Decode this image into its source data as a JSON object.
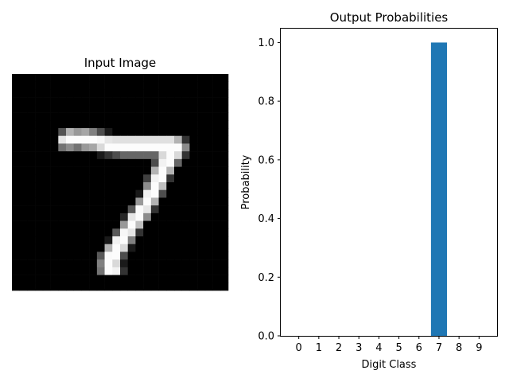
{
  "chart_data": [
    {
      "type": "heatmap",
      "title": "Input Image",
      "colormap": "gray",
      "rows": 28,
      "cols": 28,
      "pixels": [
        [
          0,
          0,
          0,
          0,
          0,
          0,
          0,
          0,
          0,
          0,
          0,
          0,
          0,
          0,
          0,
          0,
          0,
          0,
          0,
          0,
          0,
          0,
          0,
          0,
          0,
          0,
          0,
          0
        ],
        [
          0,
          0,
          0,
          0,
          0,
          0,
          0,
          0,
          0,
          0,
          0,
          0,
          0,
          0,
          0,
          0,
          0,
          0,
          0,
          0,
          0,
          0,
          0,
          0,
          0,
          0,
          0,
          0
        ],
        [
          0,
          0,
          0,
          0,
          0,
          0,
          0,
          0,
          0,
          0,
          0,
          0,
          0,
          0,
          0,
          0,
          0,
          0,
          0,
          0,
          0,
          0,
          0,
          0,
          0,
          0,
          0,
          0
        ],
        [
          0,
          0,
          0,
          0,
          0,
          0,
          0,
          0,
          0,
          0,
          0,
          0,
          0,
          0,
          0,
          0,
          0,
          0,
          0,
          0,
          0,
          0,
          0,
          0,
          0,
          0,
          0,
          0
        ],
        [
          0,
          0,
          0,
          0,
          0,
          0,
          0,
          0,
          0,
          0,
          0,
          0,
          0,
          0,
          0,
          0,
          0,
          0,
          0,
          0,
          0,
          0,
          0,
          0,
          0,
          0,
          0,
          0
        ],
        [
          0,
          0,
          0,
          0,
          0,
          0,
          0,
          0,
          0,
          0,
          0,
          0,
          0,
          0,
          0,
          0,
          0,
          0,
          0,
          0,
          0,
          0,
          0,
          0,
          0,
          0,
          0,
          0
        ],
        [
          0,
          0,
          0,
          0,
          0,
          0,
          0,
          0,
          0,
          0,
          0,
          0,
          0,
          0,
          0,
          0,
          0,
          0,
          0,
          0,
          0,
          0,
          0,
          0,
          0,
          0,
          0,
          0
        ],
        [
          0,
          0,
          0,
          0,
          0,
          0,
          0.33,
          0.7,
          0.6,
          0.65,
          0.5,
          0.3,
          0.1,
          0,
          0,
          0,
          0,
          0,
          0,
          0,
          0,
          0,
          0,
          0,
          0,
          0,
          0,
          0
        ],
        [
          0,
          0,
          0,
          0,
          0,
          0,
          0.9,
          0.99,
          0.99,
          0.99,
          0.99,
          0.97,
          0.9,
          0.88,
          0.88,
          0.88,
          0.88,
          0.88,
          0.88,
          0.88,
          0.88,
          0.7,
          0.2,
          0,
          0,
          0,
          0,
          0
        ],
        [
          0,
          0,
          0,
          0,
          0,
          0,
          0.45,
          0.55,
          0.45,
          0.6,
          0.65,
          0.85,
          0.99,
          0.99,
          0.99,
          0.99,
          0.99,
          0.99,
          0.99,
          0.99,
          0.99,
          0.99,
          0.55,
          0,
          0,
          0,
          0,
          0
        ],
        [
          0,
          0,
          0,
          0,
          0,
          0,
          0,
          0,
          0,
          0,
          0,
          0.1,
          0.2,
          0.3,
          0.4,
          0.4,
          0.4,
          0.4,
          0.4,
          0.85,
          0.99,
          0.85,
          0.2,
          0,
          0,
          0,
          0,
          0
        ],
        [
          0,
          0,
          0,
          0,
          0,
          0,
          0,
          0,
          0,
          0,
          0,
          0,
          0,
          0,
          0,
          0,
          0,
          0,
          0.3,
          0.95,
          0.99,
          0.4,
          0,
          0,
          0,
          0,
          0,
          0
        ],
        [
          0,
          0,
          0,
          0,
          0,
          0,
          0,
          0,
          0,
          0,
          0,
          0,
          0,
          0,
          0,
          0,
          0,
          0,
          0.7,
          0.99,
          0.7,
          0,
          0,
          0,
          0,
          0,
          0,
          0
        ],
        [
          0,
          0,
          0,
          0,
          0,
          0,
          0,
          0,
          0,
          0,
          0,
          0,
          0,
          0,
          0,
          0,
          0,
          0.25,
          0.95,
          0.99,
          0.2,
          0,
          0,
          0,
          0,
          0,
          0,
          0
        ],
        [
          0,
          0,
          0,
          0,
          0,
          0,
          0,
          0,
          0,
          0,
          0,
          0,
          0,
          0,
          0,
          0,
          0,
          0.55,
          0.99,
          0.75,
          0,
          0,
          0,
          0,
          0,
          0,
          0,
          0
        ],
        [
          0,
          0,
          0,
          0,
          0,
          0,
          0,
          0,
          0,
          0,
          0,
          0,
          0,
          0,
          0,
          0,
          0.1,
          0.95,
          0.99,
          0.3,
          0,
          0,
          0,
          0,
          0,
          0,
          0,
          0
        ],
        [
          0,
          0,
          0,
          0,
          0,
          0,
          0,
          0,
          0,
          0,
          0,
          0,
          0,
          0,
          0,
          0,
          0.6,
          0.99,
          0.7,
          0,
          0,
          0,
          0,
          0,
          0,
          0,
          0,
          0
        ],
        [
          0,
          0,
          0,
          0,
          0,
          0,
          0,
          0,
          0,
          0,
          0,
          0,
          0,
          0,
          0,
          0.35,
          0.98,
          0.9,
          0.2,
          0,
          0,
          0,
          0,
          0,
          0,
          0,
          0,
          0
        ],
        [
          0,
          0,
          0,
          0,
          0,
          0,
          0,
          0,
          0,
          0,
          0,
          0,
          0,
          0,
          0.15,
          0.9,
          0.99,
          0.55,
          0,
          0,
          0,
          0,
          0,
          0,
          0,
          0,
          0,
          0
        ],
        [
          0,
          0,
          0,
          0,
          0,
          0,
          0,
          0,
          0,
          0,
          0,
          0,
          0,
          0,
          0.6,
          0.99,
          0.75,
          0,
          0,
          0,
          0,
          0,
          0,
          0,
          0,
          0,
          0,
          0
        ],
        [
          0,
          0,
          0,
          0,
          0,
          0,
          0,
          0,
          0,
          0,
          0,
          0,
          0,
          0.35,
          0.97,
          0.9,
          0.2,
          0,
          0,
          0,
          0,
          0,
          0,
          0,
          0,
          0,
          0,
          0
        ],
        [
          0,
          0,
          0,
          0,
          0,
          0,
          0,
          0,
          0,
          0,
          0,
          0,
          0.1,
          0.95,
          0.99,
          0.5,
          0,
          0,
          0,
          0,
          0,
          0,
          0,
          0,
          0,
          0,
          0,
          0
        ],
        [
          0,
          0,
          0,
          0,
          0,
          0,
          0,
          0,
          0,
          0,
          0,
          0,
          0.7,
          0.99,
          0.85,
          0.1,
          0,
          0,
          0,
          0,
          0,
          0,
          0,
          0,
          0,
          0,
          0,
          0
        ],
        [
          0,
          0,
          0,
          0,
          0,
          0,
          0,
          0,
          0,
          0,
          0,
          0.35,
          0.98,
          0.99,
          0.3,
          0,
          0,
          0,
          0,
          0,
          0,
          0,
          0,
          0,
          0,
          0,
          0,
          0
        ],
        [
          0,
          0,
          0,
          0,
          0,
          0,
          0,
          0,
          0,
          0,
          0,
          0.5,
          0.99,
          0.85,
          0.1,
          0,
          0,
          0,
          0,
          0,
          0,
          0,
          0,
          0,
          0,
          0,
          0,
          0
        ],
        [
          0,
          0,
          0,
          0,
          0,
          0,
          0,
          0,
          0,
          0,
          0,
          0.45,
          0.99,
          0.95,
          0.2,
          0,
          0,
          0,
          0,
          0,
          0,
          0,
          0,
          0,
          0,
          0,
          0,
          0
        ],
        [
          0,
          0,
          0,
          0,
          0,
          0,
          0,
          0,
          0,
          0,
          0,
          0,
          0,
          0,
          0,
          0,
          0,
          0,
          0,
          0,
          0,
          0,
          0,
          0,
          0,
          0,
          0,
          0
        ],
        [
          0,
          0,
          0,
          0,
          0,
          0,
          0,
          0,
          0,
          0,
          0,
          0,
          0,
          0,
          0,
          0,
          0,
          0,
          0,
          0,
          0,
          0,
          0,
          0,
          0,
          0,
          0,
          0
        ]
      ]
    },
    {
      "type": "bar",
      "title": "Output Probabilities",
      "xlabel": "Digit Class",
      "ylabel": "Probability",
      "categories": [
        "0",
        "1",
        "2",
        "3",
        "4",
        "5",
        "6",
        "7",
        "8",
        "9"
      ],
      "values": [
        0,
        0,
        0,
        0,
        0,
        0,
        0,
        1.0,
        0,
        0
      ],
      "ylim": [
        0,
        1.05
      ],
      "yticks": [
        0.0,
        0.2,
        0.4,
        0.6,
        0.8,
        1.0
      ],
      "ytick_labels": [
        "0.0",
        "0.2",
        "0.4",
        "0.6",
        "0.8",
        "1.0"
      ],
      "bar_color": "#1f77b4",
      "grid": false
    }
  ]
}
